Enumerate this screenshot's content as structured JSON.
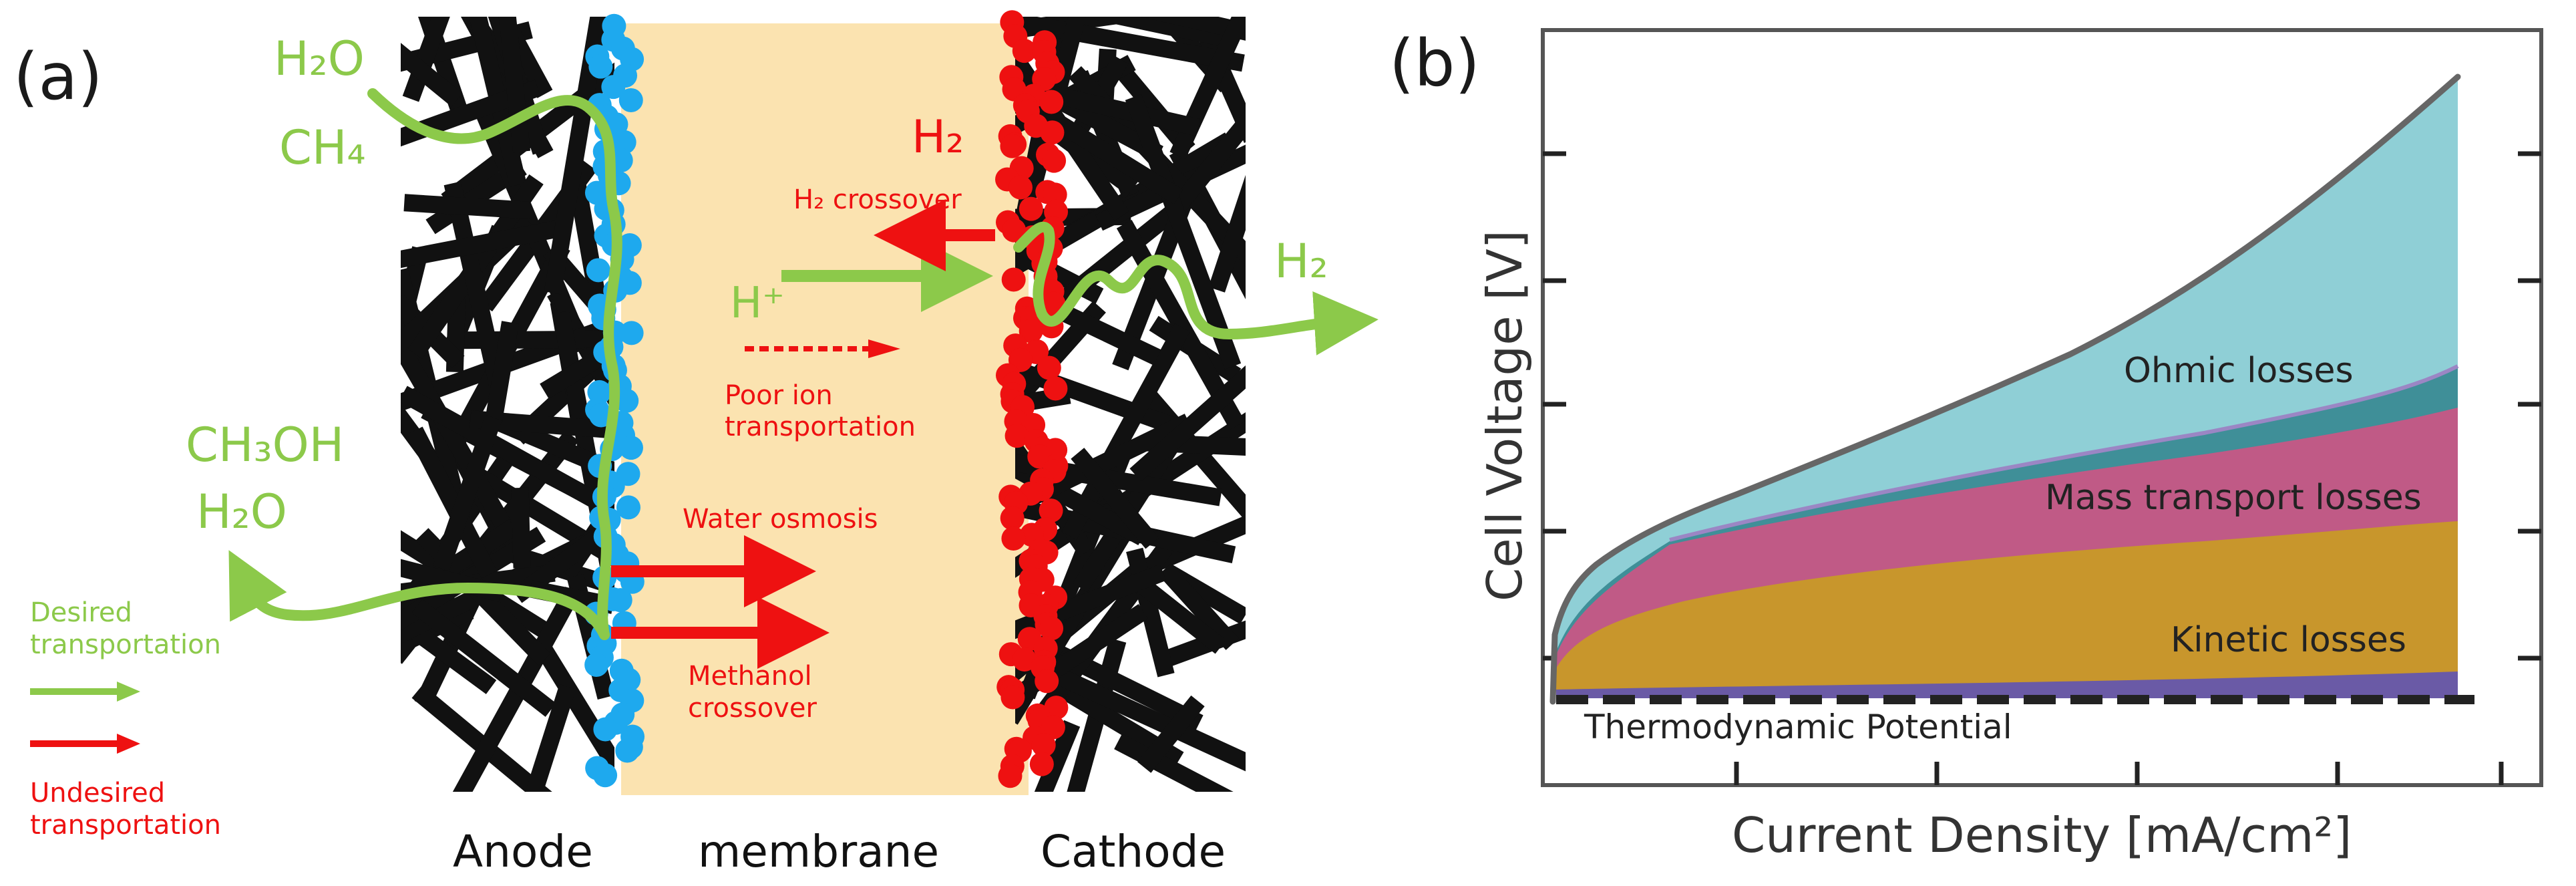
{
  "panel_a": {
    "panel_label": "(a)",
    "colors": {
      "membrane": "#fbe3b0",
      "anode_catalyst": "#1ea9ee",
      "cathode_catalyst": "#ee1111",
      "fiber": "#111111",
      "desired": "#8cc94a",
      "undesired": "#ee1111"
    },
    "icons": {
      "desired_arrow": "green-arrow-icon",
      "undesired_arrow": "red-arrow-icon"
    },
    "labels": {
      "h2o_top": "H₂O",
      "ch4": "CH₄",
      "ch3oh": "CH₃OH",
      "h2o_left": "H₂O",
      "h2_cathode": "H₂",
      "h2_crossover": "H₂ crossover",
      "h_plus": "H⁺",
      "h2_out": "H₂",
      "poor_ion_1": "Poor ion",
      "poor_ion_2": "transportation",
      "water_osmosis": "Water osmosis",
      "methanol_1": "Methanol",
      "methanol_2": "crossover",
      "anode": "Anode",
      "membrane": "membrane",
      "cathode": "Cathode"
    },
    "legend": {
      "desired_1": "Desired",
      "desired_2": "transportation",
      "undesired_1": "Undesired",
      "undesired_2": "transportation"
    }
  },
  "panel_b": {
    "panel_label": "(b)",
    "y_axis_label": "Cell Voltage  [V]",
    "x_axis_label": "Current Density [mA/cm²]",
    "regions": {
      "ohmic": {
        "label": "Ohmic losses",
        "color": "#8fcfd6"
      },
      "mass_transport": {
        "label": "Mass transport losses",
        "color": "#c05a86"
      },
      "kinetic": {
        "label": "Kinetic losses",
        "color": "#c8962c"
      },
      "thermo_band": {
        "color": "#6a5aa6"
      },
      "transition_band": {
        "color": "#3f8f98"
      }
    },
    "thermodynamic_label": "Thermodynamic Potential",
    "outline_color": "#666666"
  }
}
